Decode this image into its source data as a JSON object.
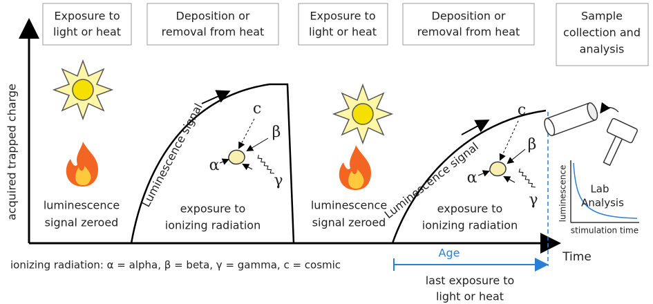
{
  "stages": [
    {
      "lines": [
        "Exposure to",
        "light or heat"
      ]
    },
    {
      "lines": [
        "Deposition or",
        "removal from heat"
      ]
    },
    {
      "lines": [
        "Exposure to",
        "light or heat"
      ]
    },
    {
      "lines": [
        "Deposition or",
        "removal from heat"
      ]
    },
    {
      "lines": [
        "Sample",
        "collection and",
        "analysis"
      ]
    }
  ],
  "y_axis_label": "acquired trapped charge",
  "x_axis_label": "Time",
  "curves": [
    {
      "label": "Luminescence signal",
      "zeroed": [
        "luminescence",
        "signal zeroed"
      ],
      "exposure": [
        "exposure to",
        "ionizing radiation"
      ],
      "c": "c",
      "beta": "β",
      "alpha": "α",
      "gamma": "γ"
    },
    {
      "label": "Luminescence signal",
      "zeroed": [
        "luminescence",
        "signal zeroed"
      ],
      "exposure": [
        "exposure to",
        "ionizing radiation"
      ],
      "c": "c",
      "beta": "β",
      "alpha": "α",
      "gamma": "γ"
    }
  ],
  "lab": {
    "title": [
      "Lab",
      "Analysis"
    ],
    "y_label": "luminescence",
    "x_label": "stimulation time"
  },
  "legend": "ionizing radiation: α = alpha, β = beta, γ = gamma, c = cosmic",
  "age": {
    "label": "Age",
    "note": [
      "last exposure to",
      "light or heat"
    ]
  }
}
